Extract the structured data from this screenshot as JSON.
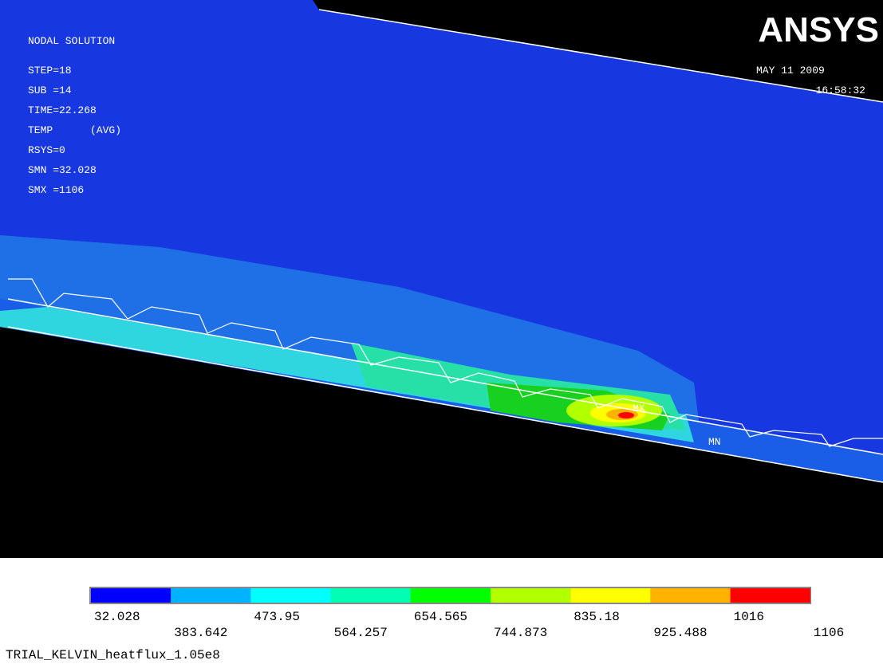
{
  "header": {
    "lines": [
      "NODAL SOLUTION",
      "STEP=18",
      "SUB =14",
      "TIME=22.268",
      "TEMP      (AVG)",
      "RSYS=0",
      "SMN =32.028",
      "SMX =1106"
    ]
  },
  "logo": "ANSYS",
  "date": "MAY 11 2009",
  "time": "16:58:32",
  "markers": {
    "max": "MX",
    "min": "MN"
  },
  "legend": {
    "colors": [
      "#0000ff",
      "#00b2ff",
      "#00ffff",
      "#00ffb2",
      "#00ff00",
      "#b2ff00",
      "#ffff00",
      "#ffb200",
      "#ff0000"
    ],
    "labels": [
      "32.028",
      "383.642",
      "473.95",
      "564.257",
      "654.565",
      "744.873",
      "835.18",
      "925.488",
      "1016",
      "1106"
    ]
  },
  "caption": "TRIAL_KELVIN_heatflux_1.05e8"
}
